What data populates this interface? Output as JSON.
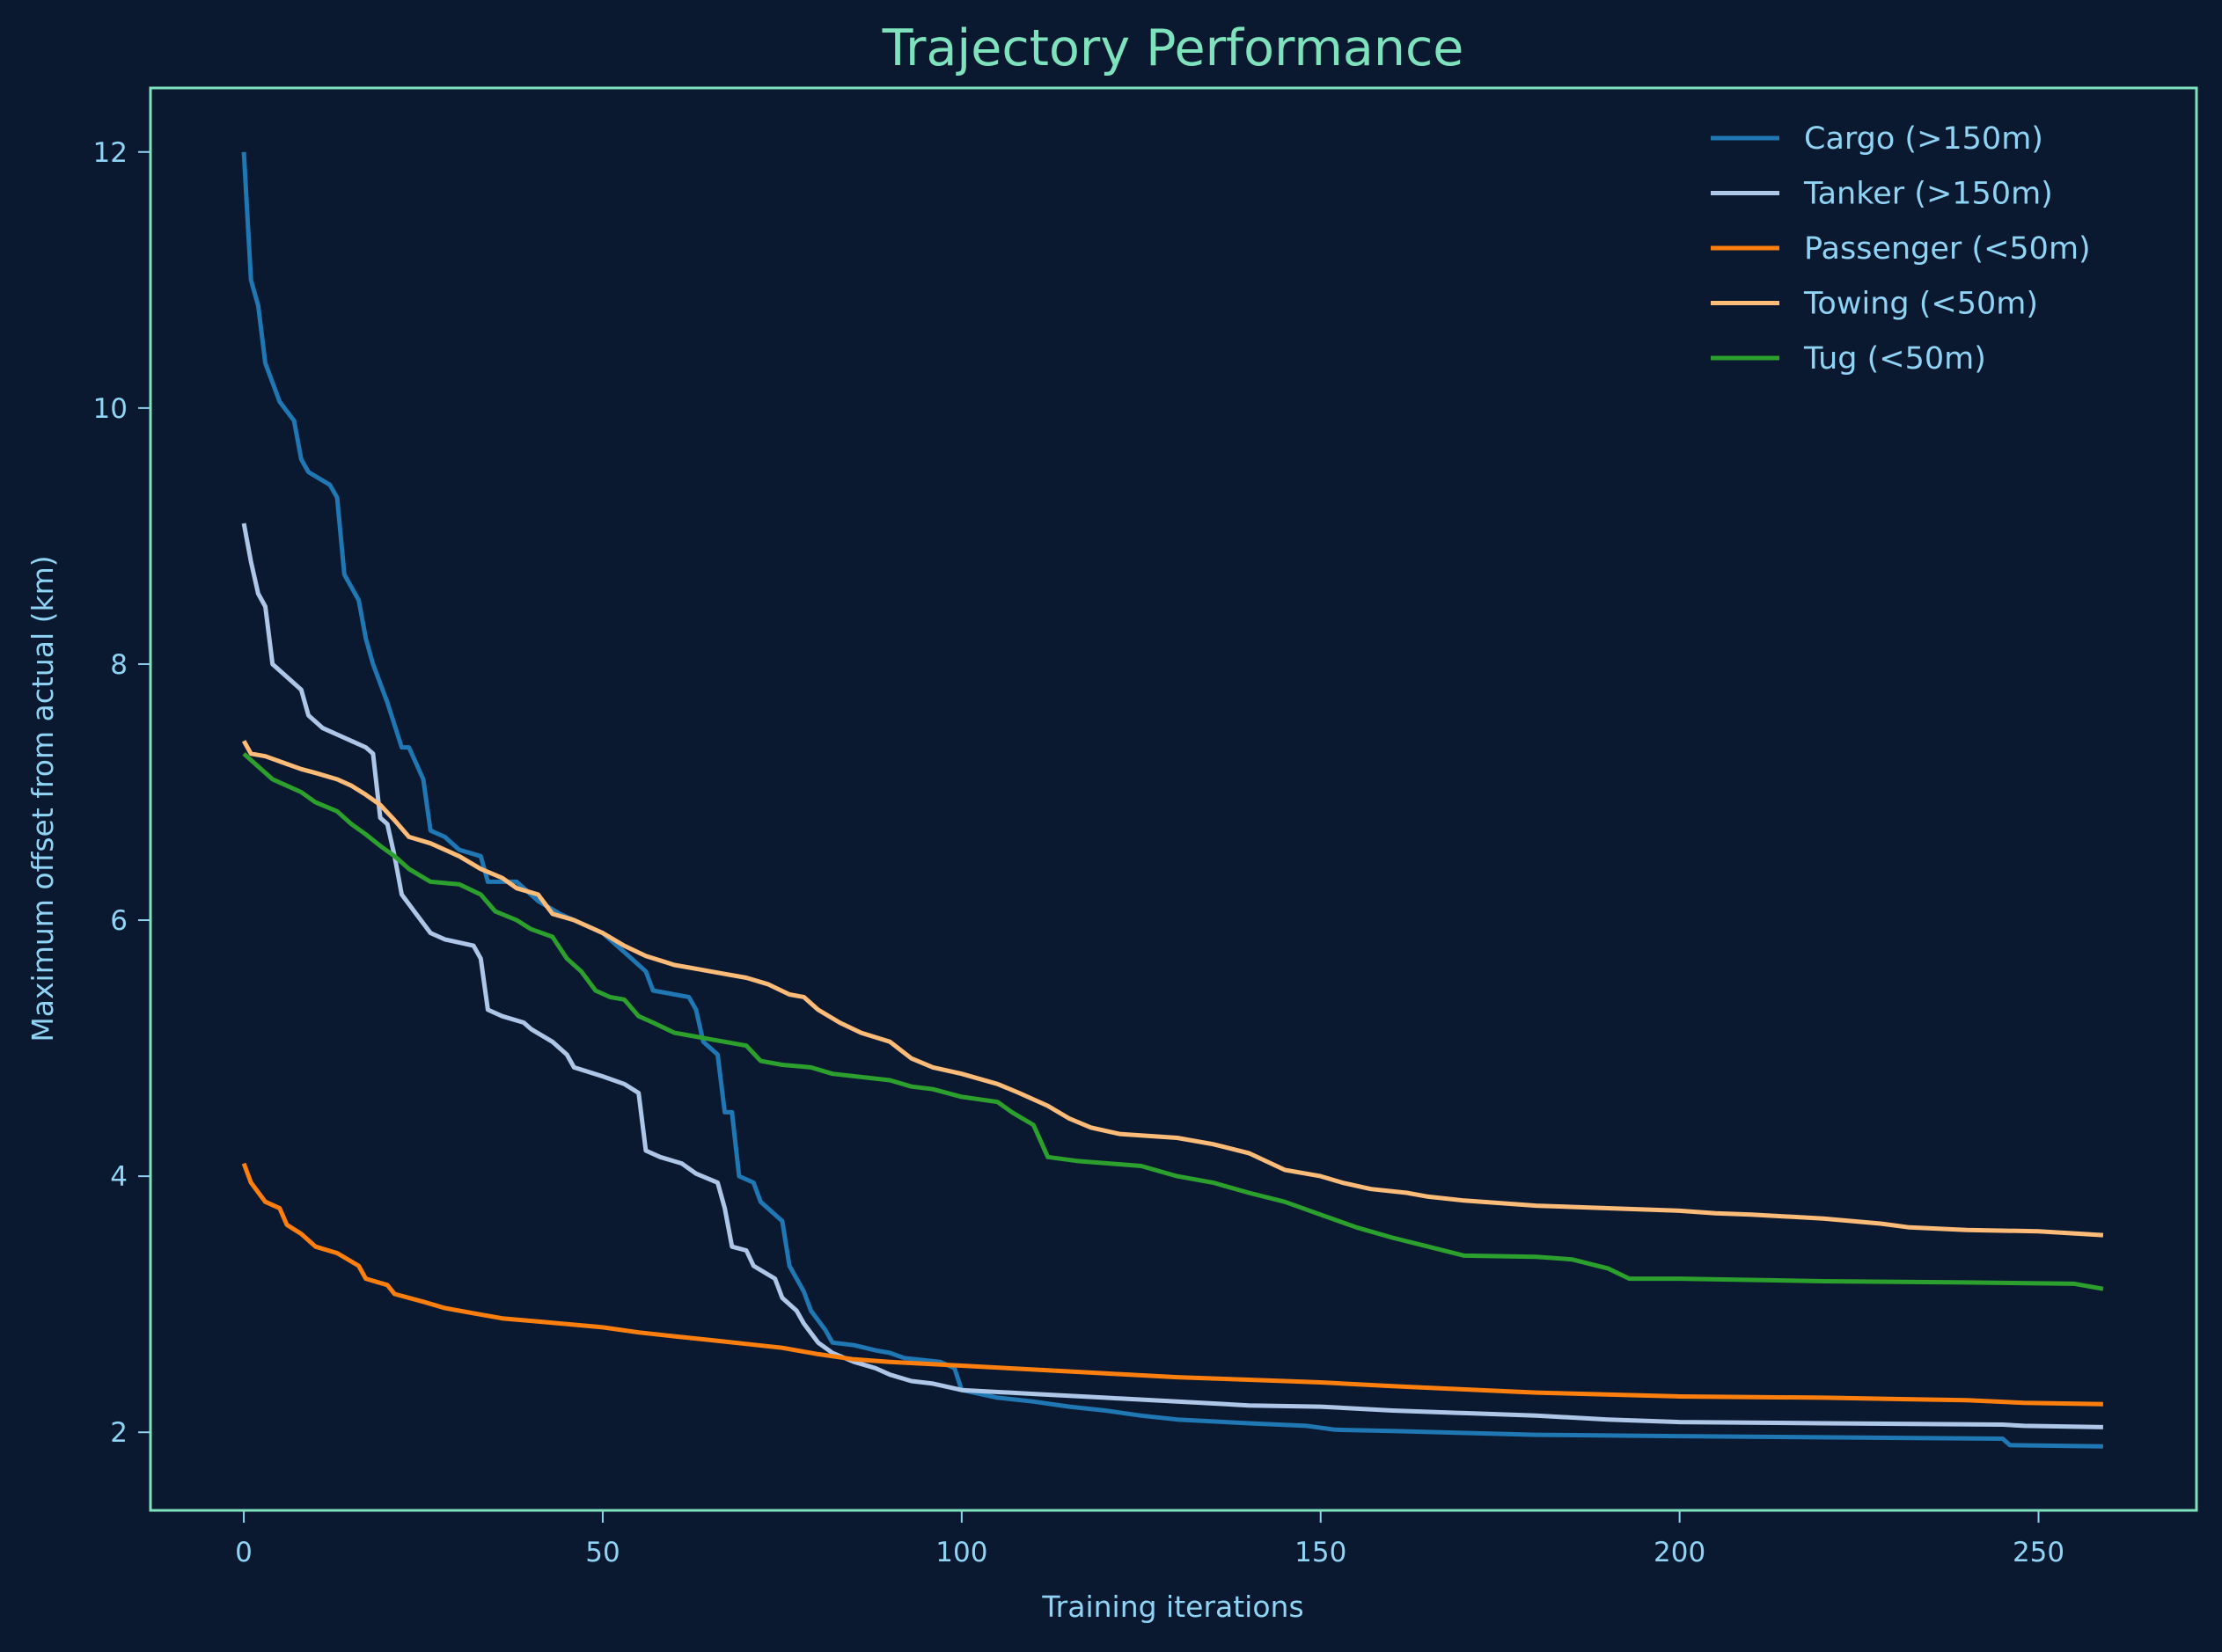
{
  "chart_data": {
    "type": "line",
    "title": "Trajectory Performance",
    "xlabel": "Training iterations",
    "ylabel": "Maximum offset from actual (km)",
    "xlim": [
      -13,
      272
    ],
    "ylim": [
      1.39,
      12.5
    ],
    "xticks": [
      0,
      50,
      100,
      150,
      200,
      250
    ],
    "yticks": [
      2,
      4,
      6,
      8,
      10,
      12
    ],
    "grid": false,
    "legend_position": "top-right",
    "colors": {
      "background": "#0b1930",
      "spine": "#7ee3bd",
      "text": "#8fd3f5"
    },
    "series": [
      {
        "name": "Cargo (>150m)",
        "color": "#1f77b4",
        "points": [
          [
            0,
            12.0
          ],
          [
            1,
            11.0
          ],
          [
            2,
            10.8
          ],
          [
            3,
            10.35
          ],
          [
            5,
            10.05
          ],
          [
            7,
            9.9
          ],
          [
            8,
            9.6
          ],
          [
            9,
            9.5
          ],
          [
            12,
            9.4
          ],
          [
            13,
            9.3
          ],
          [
            14,
            8.7
          ],
          [
            16,
            8.5
          ],
          [
            17,
            8.2
          ],
          [
            18,
            8.0
          ],
          [
            20,
            7.7
          ],
          [
            22,
            7.35
          ],
          [
            23,
            7.35
          ],
          [
            25,
            7.1
          ],
          [
            26,
            6.7
          ],
          [
            28,
            6.65
          ],
          [
            30,
            6.55
          ],
          [
            33,
            6.5
          ],
          [
            34,
            6.3
          ],
          [
            38,
            6.3
          ],
          [
            41,
            6.15
          ],
          [
            44,
            6.05
          ],
          [
            46,
            6.0
          ],
          [
            48,
            5.95
          ],
          [
            50,
            5.9
          ],
          [
            52,
            5.8
          ],
          [
            54,
            5.7
          ],
          [
            56,
            5.6
          ],
          [
            57,
            5.45
          ],
          [
            62,
            5.4
          ],
          [
            63,
            5.3
          ],
          [
            64,
            5.05
          ],
          [
            66,
            4.95
          ],
          [
            67,
            4.5
          ],
          [
            68,
            4.5
          ],
          [
            69,
            4.0
          ],
          [
            71,
            3.95
          ],
          [
            72,
            3.8
          ],
          [
            75,
            3.65
          ],
          [
            76,
            3.3
          ],
          [
            78,
            3.1
          ],
          [
            79,
            2.95
          ],
          [
            81,
            2.8
          ],
          [
            82,
            2.7
          ],
          [
            85,
            2.68
          ],
          [
            88,
            2.64
          ],
          [
            90,
            2.62
          ],
          [
            92,
            2.58
          ],
          [
            97,
            2.55
          ],
          [
            99,
            2.5
          ],
          [
            100,
            2.33
          ],
          [
            105,
            2.27
          ],
          [
            110,
            2.24
          ],
          [
            115,
            2.2
          ],
          [
            120,
            2.17
          ],
          [
            125,
            2.13
          ],
          [
            130,
            2.1
          ],
          [
            140,
            2.07
          ],
          [
            148,
            2.05
          ],
          [
            152,
            2.02
          ],
          [
            160,
            2.01
          ],
          [
            180,
            1.98
          ],
          [
            200,
            1.97
          ],
          [
            245,
            1.95
          ],
          [
            246,
            1.9
          ],
          [
            259,
            1.89
          ]
        ]
      },
      {
        "name": "Tanker (>150m)",
        "color": "#aec7e8",
        "points": [
          [
            0,
            9.1
          ],
          [
            1,
            8.8
          ],
          [
            2,
            8.55
          ],
          [
            3,
            8.45
          ],
          [
            4,
            8.0
          ],
          [
            6,
            7.9
          ],
          [
            8,
            7.8
          ],
          [
            9,
            7.6
          ],
          [
            11,
            7.5
          ],
          [
            13,
            7.45
          ],
          [
            15,
            7.4
          ],
          [
            17,
            7.35
          ],
          [
            18,
            7.3
          ],
          [
            19,
            6.8
          ],
          [
            20,
            6.75
          ],
          [
            21,
            6.5
          ],
          [
            22,
            6.2
          ],
          [
            24,
            6.05
          ],
          [
            26,
            5.9
          ],
          [
            28,
            5.85
          ],
          [
            32,
            5.8
          ],
          [
            33,
            5.7
          ],
          [
            34,
            5.3
          ],
          [
            36,
            5.25
          ],
          [
            39,
            5.2
          ],
          [
            40,
            5.15
          ],
          [
            43,
            5.05
          ],
          [
            45,
            4.95
          ],
          [
            46,
            4.85
          ],
          [
            50,
            4.78
          ],
          [
            53,
            4.72
          ],
          [
            55,
            4.65
          ],
          [
            56,
            4.2
          ],
          [
            58,
            4.15
          ],
          [
            61,
            4.1
          ],
          [
            63,
            4.02
          ],
          [
            66,
            3.95
          ],
          [
            67,
            3.75
          ],
          [
            68,
            3.45
          ],
          [
            70,
            3.42
          ],
          [
            71,
            3.3
          ],
          [
            74,
            3.2
          ],
          [
            75,
            3.05
          ],
          [
            77,
            2.95
          ],
          [
            78,
            2.85
          ],
          [
            80,
            2.7
          ],
          [
            82,
            2.62
          ],
          [
            85,
            2.55
          ],
          [
            88,
            2.5
          ],
          [
            90,
            2.45
          ],
          [
            93,
            2.4
          ],
          [
            96,
            2.38
          ],
          [
            100,
            2.33
          ],
          [
            110,
            2.3
          ],
          [
            120,
            2.27
          ],
          [
            130,
            2.24
          ],
          [
            140,
            2.21
          ],
          [
            150,
            2.2
          ],
          [
            160,
            2.17
          ],
          [
            170,
            2.15
          ],
          [
            180,
            2.13
          ],
          [
            190,
            2.1
          ],
          [
            200,
            2.08
          ],
          [
            220,
            2.07
          ],
          [
            245,
            2.06
          ],
          [
            248,
            2.05
          ],
          [
            259,
            2.04
          ]
        ]
      },
      {
        "name": "Passenger (<50m)",
        "color": "#ff7f0e",
        "points": [
          [
            0,
            4.1
          ],
          [
            1,
            3.95
          ],
          [
            3,
            3.8
          ],
          [
            5,
            3.75
          ],
          [
            6,
            3.62
          ],
          [
            8,
            3.55
          ],
          [
            10,
            3.45
          ],
          [
            13,
            3.4
          ],
          [
            16,
            3.3
          ],
          [
            17,
            3.2
          ],
          [
            20,
            3.15
          ],
          [
            21,
            3.08
          ],
          [
            25,
            3.02
          ],
          [
            28,
            2.97
          ],
          [
            32,
            2.93
          ],
          [
            36,
            2.89
          ],
          [
            42,
            2.86
          ],
          [
            50,
            2.82
          ],
          [
            55,
            2.78
          ],
          [
            60,
            2.75
          ],
          [
            65,
            2.72
          ],
          [
            70,
            2.69
          ],
          [
            75,
            2.66
          ],
          [
            80,
            2.61
          ],
          [
            85,
            2.57
          ],
          [
            90,
            2.55
          ],
          [
            100,
            2.52
          ],
          [
            110,
            2.49
          ],
          [
            120,
            2.46
          ],
          [
            130,
            2.43
          ],
          [
            140,
            2.41
          ],
          [
            150,
            2.39
          ],
          [
            160,
            2.36
          ],
          [
            168,
            2.34
          ],
          [
            180,
            2.31
          ],
          [
            200,
            2.28
          ],
          [
            220,
            2.27
          ],
          [
            240,
            2.25
          ],
          [
            248,
            2.23
          ],
          [
            259,
            2.22
          ]
        ]
      },
      {
        "name": "Towing (<50m)",
        "color": "#ffbb78",
        "points": [
          [
            0,
            7.4
          ],
          [
            1,
            7.3
          ],
          [
            3,
            7.28
          ],
          [
            6,
            7.22
          ],
          [
            8,
            7.18
          ],
          [
            10,
            7.15
          ],
          [
            13,
            7.1
          ],
          [
            15,
            7.05
          ],
          [
            17,
            6.98
          ],
          [
            19,
            6.9
          ],
          [
            21,
            6.78
          ],
          [
            23,
            6.65
          ],
          [
            26,
            6.6
          ],
          [
            28,
            6.55
          ],
          [
            30,
            6.5
          ],
          [
            33,
            6.4
          ],
          [
            36,
            6.33
          ],
          [
            38,
            6.25
          ],
          [
            41,
            6.2
          ],
          [
            43,
            6.05
          ],
          [
            46,
            6.0
          ],
          [
            50,
            5.9
          ],
          [
            53,
            5.8
          ],
          [
            56,
            5.72
          ],
          [
            60,
            5.65
          ],
          [
            63,
            5.62
          ],
          [
            67,
            5.58
          ],
          [
            70,
            5.55
          ],
          [
            73,
            5.5
          ],
          [
            76,
            5.42
          ],
          [
            78,
            5.4
          ],
          [
            80,
            5.3
          ],
          [
            83,
            5.2
          ],
          [
            86,
            5.12
          ],
          [
            90,
            5.05
          ],
          [
            93,
            4.92
          ],
          [
            96,
            4.85
          ],
          [
            100,
            4.8
          ],
          [
            105,
            4.72
          ],
          [
            108,
            4.65
          ],
          [
            112,
            4.55
          ],
          [
            115,
            4.45
          ],
          [
            118,
            4.38
          ],
          [
            122,
            4.33
          ],
          [
            130,
            4.3
          ],
          [
            135,
            4.25
          ],
          [
            140,
            4.18
          ],
          [
            145,
            4.05
          ],
          [
            150,
            4.0
          ],
          [
            153,
            3.95
          ],
          [
            157,
            3.9
          ],
          [
            162,
            3.87
          ],
          [
            165,
            3.84
          ],
          [
            170,
            3.81
          ],
          [
            180,
            3.77
          ],
          [
            190,
            3.75
          ],
          [
            200,
            3.73
          ],
          [
            205,
            3.71
          ],
          [
            210,
            3.7
          ],
          [
            220,
            3.67
          ],
          [
            228,
            3.63
          ],
          [
            232,
            3.6
          ],
          [
            240,
            3.58
          ],
          [
            250,
            3.57
          ],
          [
            259,
            3.54
          ]
        ]
      },
      {
        "name": "Tug (<50m)",
        "color": "#2ca02c",
        "points": [
          [
            0,
            7.3
          ],
          [
            2,
            7.2
          ],
          [
            4,
            7.1
          ],
          [
            6,
            7.05
          ],
          [
            8,
            7.0
          ],
          [
            10,
            6.92
          ],
          [
            13,
            6.85
          ],
          [
            15,
            6.75
          ],
          [
            17,
            6.67
          ],
          [
            19,
            6.58
          ],
          [
            21,
            6.5
          ],
          [
            23,
            6.4
          ],
          [
            26,
            6.3
          ],
          [
            30,
            6.28
          ],
          [
            33,
            6.2
          ],
          [
            35,
            6.07
          ],
          [
            38,
            6.0
          ],
          [
            40,
            5.93
          ],
          [
            43,
            5.87
          ],
          [
            45,
            5.7
          ],
          [
            47,
            5.6
          ],
          [
            49,
            5.45
          ],
          [
            51,
            5.4
          ],
          [
            53,
            5.38
          ],
          [
            55,
            5.25
          ],
          [
            57,
            5.2
          ],
          [
            60,
            5.12
          ],
          [
            62,
            5.1
          ],
          [
            65,
            5.07
          ],
          [
            70,
            5.02
          ],
          [
            72,
            4.9
          ],
          [
            75,
            4.87
          ],
          [
            79,
            4.85
          ],
          [
            82,
            4.8
          ],
          [
            90,
            4.75
          ],
          [
            93,
            4.7
          ],
          [
            96,
            4.68
          ],
          [
            100,
            4.62
          ],
          [
            105,
            4.58
          ],
          [
            107,
            4.5
          ],
          [
            110,
            4.4
          ],
          [
            112,
            4.15
          ],
          [
            116,
            4.12
          ],
          [
            125,
            4.08
          ],
          [
            130,
            4.0
          ],
          [
            135,
            3.95
          ],
          [
            140,
            3.87
          ],
          [
            145,
            3.8
          ],
          [
            150,
            3.7
          ],
          [
            155,
            3.6
          ],
          [
            160,
            3.52
          ],
          [
            165,
            3.45
          ],
          [
            170,
            3.38
          ],
          [
            180,
            3.37
          ],
          [
            185,
            3.35
          ],
          [
            190,
            3.28
          ],
          [
            193,
            3.2
          ],
          [
            200,
            3.2
          ],
          [
            220,
            3.18
          ],
          [
            240,
            3.17
          ],
          [
            255,
            3.16
          ],
          [
            259,
            3.12
          ]
        ]
      }
    ]
  }
}
